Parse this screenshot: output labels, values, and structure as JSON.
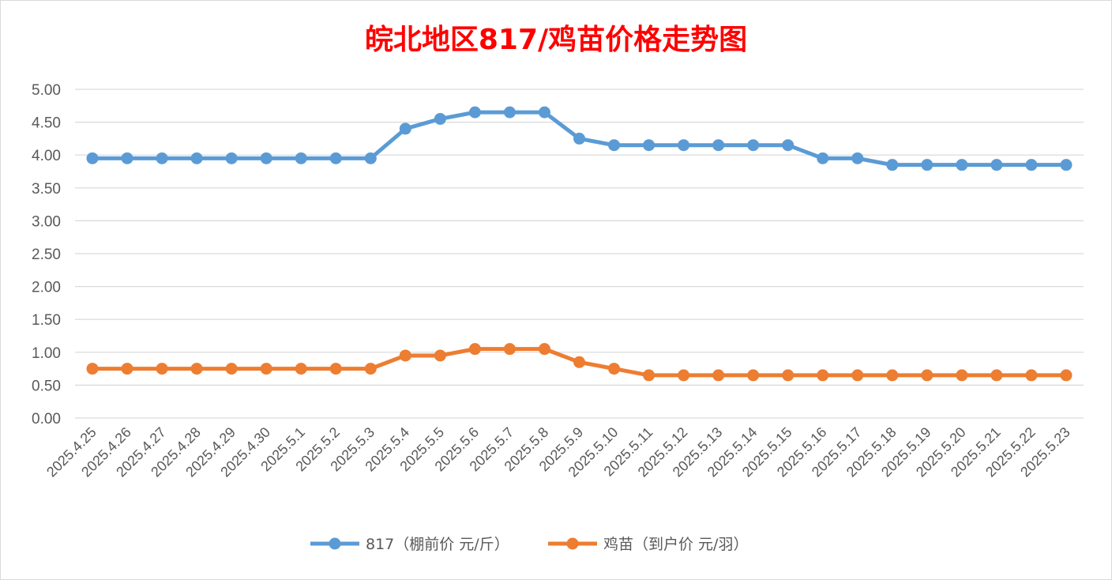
{
  "chart_data": {
    "type": "line",
    "title": "皖北地区817/鸡苗价格走势图",
    "xlabel": "",
    "ylabel": "",
    "ylim": [
      0,
      5
    ],
    "yticks": [
      "0.00",
      "0.50",
      "1.00",
      "1.50",
      "2.00",
      "2.50",
      "3.00",
      "3.50",
      "4.00",
      "4.50",
      "5.00"
    ],
    "grid": true,
    "legend_position": "bottom",
    "categories": [
      "2025.4.25",
      "2025.4.26",
      "2025.4.27",
      "2025.4.28",
      "2025.4.29",
      "2025.4.30",
      "2025.5.1",
      "2025.5.2",
      "2025.5.3",
      "2025.5.4",
      "2025.5.5",
      "2025.5.6",
      "2025.5.7",
      "2025.5.8",
      "2025.5.9",
      "2025.5.10",
      "2025.5.11",
      "2025.5.12",
      "2025.5.13",
      "2025.5.14",
      "2025.5.15",
      "2025.5.16",
      "2025.5.17",
      "2025.5.18",
      "2025.5.19",
      "2025.5.20",
      "2025.5.21",
      "2025.5.22",
      "2025.5.23"
    ],
    "series": [
      {
        "name": "817（棚前价 元/斤）",
        "color": "#5b9bd5",
        "values": [
          3.95,
          3.95,
          3.95,
          3.95,
          3.95,
          3.95,
          3.95,
          3.95,
          3.95,
          4.4,
          4.55,
          4.65,
          4.65,
          4.65,
          4.25,
          4.15,
          4.15,
          4.15,
          4.15,
          4.15,
          4.15,
          3.95,
          3.95,
          3.85,
          3.85,
          3.85,
          3.85,
          3.85,
          3.85
        ]
      },
      {
        "name": "鸡苗（到户价 元/羽）",
        "color": "#ed7d31",
        "values": [
          0.75,
          0.75,
          0.75,
          0.75,
          0.75,
          0.75,
          0.75,
          0.75,
          0.75,
          0.95,
          0.95,
          1.05,
          1.05,
          1.05,
          0.85,
          0.75,
          0.65,
          0.65,
          0.65,
          0.65,
          0.65,
          0.65,
          0.65,
          0.65,
          0.65,
          0.65,
          0.65,
          0.65,
          0.65
        ]
      }
    ]
  }
}
